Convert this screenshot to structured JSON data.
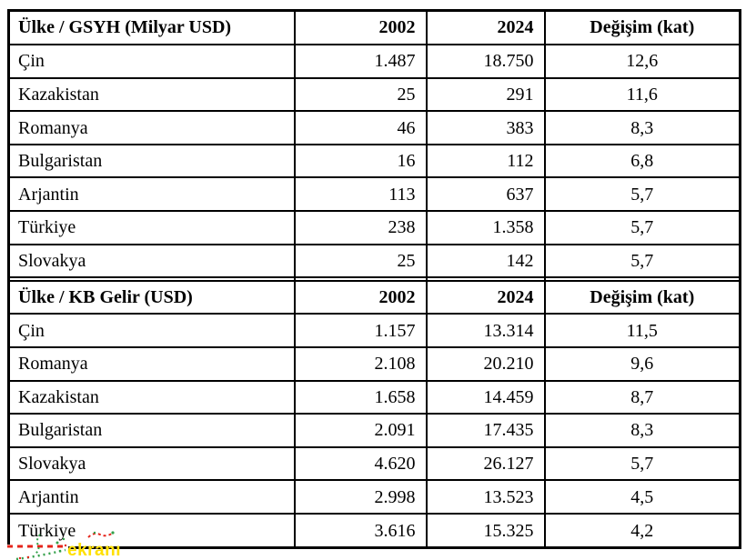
{
  "page": {
    "background": "#ffffff",
    "table_border_color": "#000000",
    "text_color": "#000000"
  },
  "tables": [
    {
      "columns": [
        "Ülke / GSYH (Milyar USD)",
        "2002",
        "2024",
        "Değişim (kat)"
      ],
      "rows": [
        [
          "Çin",
          "1.487",
          "18.750",
          "12,6"
        ],
        [
          "Kazakistan",
          "25",
          "291",
          "11,6"
        ],
        [
          "Romanya",
          "46",
          "383",
          "8,3"
        ],
        [
          "Bulgaristan",
          "16",
          "112",
          "6,8"
        ],
        [
          "Arjantin",
          "113",
          "637",
          "5,7"
        ],
        [
          "Türkiye",
          "238",
          "1.358",
          "5,7"
        ],
        [
          "Slovakya",
          "25",
          "142",
          "5,7"
        ]
      ]
    },
    {
      "columns": [
        "Ülke / KB Gelir (USD)",
        "2002",
        "2024",
        "Değişim (kat)"
      ],
      "rows": [
        [
          "Çin",
          "1.157",
          "13.314",
          "11,5"
        ],
        [
          "Romanya",
          "2.108",
          "20.210",
          "9,6"
        ],
        [
          "Kazakistan",
          "1.658",
          "14.459",
          "8,7"
        ],
        [
          "Bulgaristan",
          "2.091",
          "17.435",
          "8,3"
        ],
        [
          "Slovakya",
          "4.620",
          "26.127",
          "5,7"
        ],
        [
          "Arjantin",
          "2.998",
          "13.523",
          "4,5"
        ],
        [
          "Türkiye",
          "3.616",
          "15.325",
          "4,2"
        ]
      ]
    }
  ],
  "spacer_row": [
    "",
    "",
    "",
    ""
  ],
  "watermark": {
    "text": "ekranı",
    "text_color": "#FFE000",
    "dash_color": "#E5251B",
    "scribble_color": "#33A04A"
  }
}
